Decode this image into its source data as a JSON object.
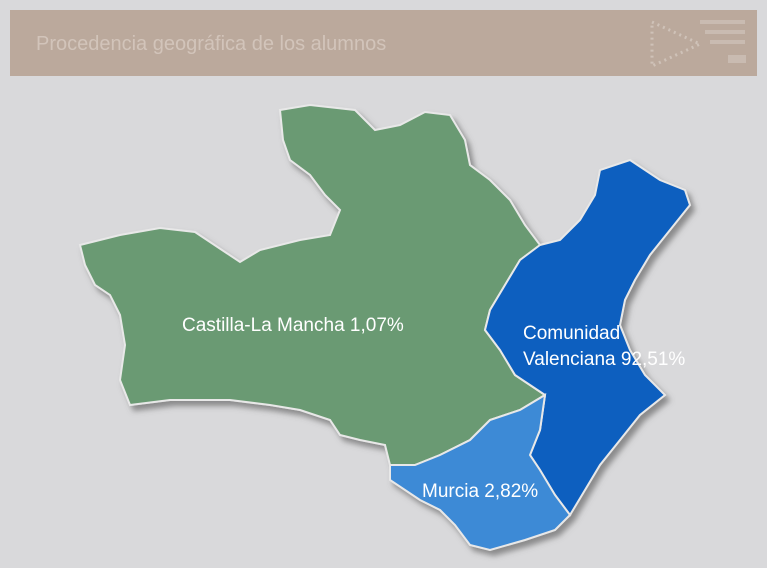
{
  "header": {
    "title": "Procedencia geográfica de los alumnos"
  },
  "regions": [
    {
      "lines": [
        "Castilla-La Mancha 1,07%"
      ]
    },
    {
      "lines": [
        "Comunidad",
        "Valenciana 92,51%"
      ]
    },
    {
      "lines": [
        "Murcia 2,82%"
      ]
    }
  ]
}
